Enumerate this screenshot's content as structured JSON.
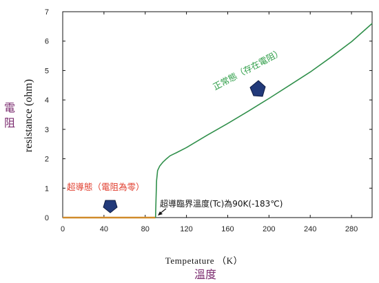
{
  "chart_data": {
    "type": "line",
    "xlabel": "Tempetature （K）",
    "xlabel_zh": "溫度",
    "ylabel": "resistance (ohm)",
    "ylabel_zh": [
      "電",
      "阻"
    ],
    "xlim": [
      0,
      300
    ],
    "ylim": [
      0,
      7
    ],
    "xticks": [
      0,
      40,
      80,
      120,
      160,
      200,
      240,
      280
    ],
    "yticks": [
      0,
      1,
      2,
      3,
      4,
      5,
      6,
      7
    ],
    "grid": false,
    "series": [
      {
        "color": "#d08a2a",
        "points": [
          [
            0,
            0
          ],
          [
            40,
            0
          ],
          [
            80,
            0
          ],
          [
            90,
            0
          ]
        ]
      },
      {
        "color": "#2f8f4a",
        "points": [
          [
            90,
            0
          ],
          [
            90.5,
            0.6
          ],
          [
            91,
            1.25
          ],
          [
            92,
            1.6
          ],
          [
            94,
            1.75
          ],
          [
            97,
            1.88
          ],
          [
            100,
            1.98
          ],
          [
            104,
            2.1
          ],
          [
            110,
            2.2
          ],
          [
            120,
            2.38
          ],
          [
            140,
            2.8
          ],
          [
            160,
            3.2
          ],
          [
            180,
            3.62
          ],
          [
            200,
            4.05
          ],
          [
            220,
            4.5
          ],
          [
            240,
            4.95
          ],
          [
            260,
            5.45
          ],
          [
            280,
            5.98
          ],
          [
            300,
            6.6
          ]
        ]
      }
    ],
    "annotations": {
      "superconducting": {
        "text": "超導態（電阻為零）",
        "color": "#e03c2c"
      },
      "normal": {
        "text": "正常態（存在電阻）",
        "color": "#2f9e48"
      },
      "critical_temp": {
        "text": "超導臨界溫度(Tc)為90K(-183℃)",
        "color": "#111111"
      }
    },
    "marker_color": "#223a7a"
  }
}
